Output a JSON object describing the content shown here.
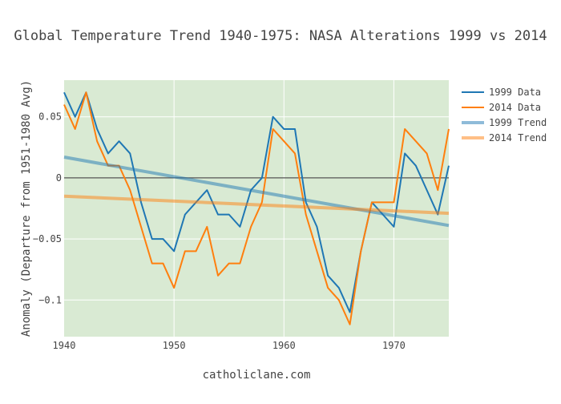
{
  "chart_data": {
    "type": "line",
    "title": "Global Temperature Trend 1940-1975: NASA Alterations 1999 vs 2014",
    "xlabel": "catholiclane.com",
    "ylabel": "Anomaly (Departure from 1951-1980 Avg)",
    "xlim": [
      1940,
      1975
    ],
    "ylim": [
      -0.13,
      0.08
    ],
    "xticks": [
      1940,
      1950,
      1960,
      1970
    ],
    "xtick_labels": [
      "1940",
      "1950",
      "1960",
      "1970"
    ],
    "yticks": [
      0.05,
      0,
      -0.05,
      -0.1
    ],
    "ytick_labels": [
      "0.05",
      "0",
      "−0.05",
      "−0.1"
    ],
    "plot_background": "#d9ead3",
    "grid": true,
    "legend_position": "top-right",
    "x": [
      1940,
      1941,
      1942,
      1943,
      1944,
      1945,
      1946,
      1947,
      1948,
      1949,
      1950,
      1951,
      1952,
      1953,
      1954,
      1955,
      1956,
      1957,
      1958,
      1959,
      1960,
      1961,
      1962,
      1963,
      1964,
      1965,
      1966,
      1967,
      1968,
      1969,
      1970,
      1971,
      1972,
      1973,
      1974,
      1975
    ],
    "series": [
      {
        "name": "1999 Data",
        "color": "#1f77b4",
        "style": "line",
        "values": [
          0.07,
          0.05,
          0.07,
          0.04,
          0.02,
          0.03,
          0.02,
          -0.02,
          -0.05,
          -0.05,
          -0.06,
          -0.03,
          -0.02,
          -0.01,
          -0.03,
          -0.03,
          -0.04,
          -0.01,
          0.0,
          0.05,
          0.04,
          0.04,
          -0.02,
          -0.04,
          -0.08,
          -0.09,
          -0.11,
          -0.06,
          -0.02,
          -0.03,
          -0.04,
          0.02,
          0.01,
          -0.01,
          -0.03,
          0.01
        ]
      },
      {
        "name": "2014 Data",
        "color": "#ff7f0e",
        "style": "line",
        "values": [
          0.06,
          0.04,
          0.07,
          0.03,
          0.01,
          0.01,
          -0.01,
          -0.04,
          -0.07,
          -0.07,
          -0.09,
          -0.06,
          -0.06,
          -0.04,
          -0.08,
          -0.07,
          -0.07,
          -0.04,
          -0.02,
          0.04,
          0.03,
          0.02,
          -0.03,
          -0.06,
          -0.09,
          -0.1,
          -0.12,
          -0.06,
          -0.02,
          -0.02,
          -0.02,
          0.04,
          0.03,
          0.02,
          -0.01,
          0.04
        ]
      },
      {
        "name": "1999 Trend",
        "color": "#1f77b4",
        "style": "trend",
        "start": [
          1940,
          0.017
        ],
        "end": [
          1975,
          -0.039
        ]
      },
      {
        "name": "2014 Trend",
        "color": "#ff7f0e",
        "style": "trend",
        "start": [
          1940,
          -0.015
        ],
        "end": [
          1975,
          -0.029
        ]
      }
    ]
  }
}
